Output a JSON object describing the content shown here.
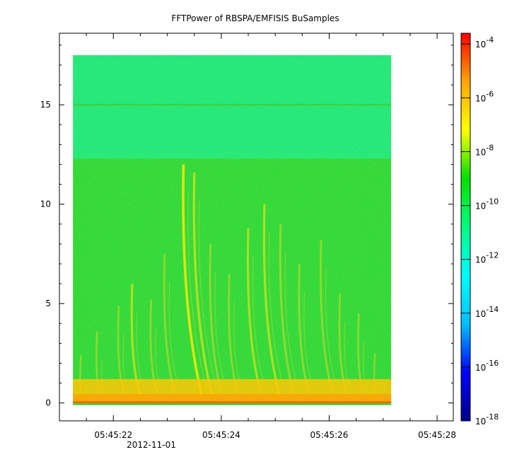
{
  "chart_data": {
    "type": "heatmap",
    "title": "FFTPower of RBSPA/EMFISIS  BuSamples",
    "x_tick_labels": [
      "05:45:22",
      "05:45:24",
      "05:45:26",
      "05:45:28"
    ],
    "x_date_label": "2012-11-01",
    "y_tick_labels": [
      "0",
      "5",
      "10",
      "15"
    ],
    "y_ticks": [
      0,
      5,
      10,
      15
    ],
    "ylim": [
      -0.9,
      18.6
    ],
    "x_range_seconds": [
      21.0,
      28.3
    ],
    "data_extent": {
      "t_start": 21.25,
      "t_end": 27.15,
      "f_min": 0,
      "f_max": 17.5
    },
    "colorbar": {
      "scale": "log",
      "range_exponents": [
        -18,
        -3.6
      ],
      "tick_exponents": [
        -4,
        -6,
        -8,
        -10,
        -12,
        -14,
        -16,
        -18
      ],
      "tick_labels": [
        "10",
        "10",
        "10",
        "10",
        "10",
        "10",
        "10",
        "10"
      ],
      "tick_superscripts": [
        "-4",
        "-6",
        "-8",
        "-10",
        "-12",
        "-14",
        "-16",
        "-18"
      ],
      "colors": [
        "#00008b",
        "#0000ff",
        "#00bfff",
        "#00ffff",
        "#00ff80",
        "#00e000",
        "#ffff00",
        "#ffa500",
        "#ff0000"
      ]
    },
    "spectrogram": {
      "background_level_exp": -11.5,
      "upper_band": {
        "f_from": 12.3,
        "f_to": 17.5,
        "level_exp": -12.0,
        "color": "#1ee87a"
      },
      "lower_band": {
        "f_from": 0,
        "f_to": 12.3,
        "level_exp": -10.5,
        "color": "#2ed838"
      },
      "narrowband_line": {
        "freq": 15.0,
        "color": "#3fcf3f"
      },
      "baseline": {
        "freq": 0.0,
        "color": "#ff6a00"
      },
      "low_freq_band": {
        "f_from": 0,
        "f_to": 1.2,
        "color": "#ffc400"
      },
      "chorus_elements": [
        {
          "t": 21.4,
          "f_top": 2.4,
          "intensity": 0.45
        },
        {
          "t": 21.7,
          "f_top": 3.6,
          "intensity": 0.55
        },
        {
          "t": 22.1,
          "f_top": 4.9,
          "intensity": 0.5
        },
        {
          "t": 22.35,
          "f_top": 6.0,
          "intensity": 0.75
        },
        {
          "t": 22.7,
          "f_top": 5.2,
          "intensity": 0.55
        },
        {
          "t": 22.95,
          "f_top": 7.5,
          "intensity": 0.55
        },
        {
          "t": 23.3,
          "f_top": 12.0,
          "intensity": 0.95
        },
        {
          "t": 23.5,
          "f_top": 11.6,
          "intensity": 0.8
        },
        {
          "t": 23.8,
          "f_top": 8.0,
          "intensity": 0.6
        },
        {
          "t": 24.15,
          "f_top": 6.5,
          "intensity": 0.55
        },
        {
          "t": 24.5,
          "f_top": 8.8,
          "intensity": 0.7
        },
        {
          "t": 24.8,
          "f_top": 10.0,
          "intensity": 0.75
        },
        {
          "t": 25.1,
          "f_top": 9.0,
          "intensity": 0.65
        },
        {
          "t": 25.45,
          "f_top": 7.0,
          "intensity": 0.6
        },
        {
          "t": 25.85,
          "f_top": 8.2,
          "intensity": 0.6
        },
        {
          "t": 26.2,
          "f_top": 5.5,
          "intensity": 0.55
        },
        {
          "t": 26.55,
          "f_top": 4.5,
          "intensity": 0.5
        },
        {
          "t": 26.85,
          "f_top": 2.5,
          "intensity": 0.45
        }
      ]
    }
  }
}
